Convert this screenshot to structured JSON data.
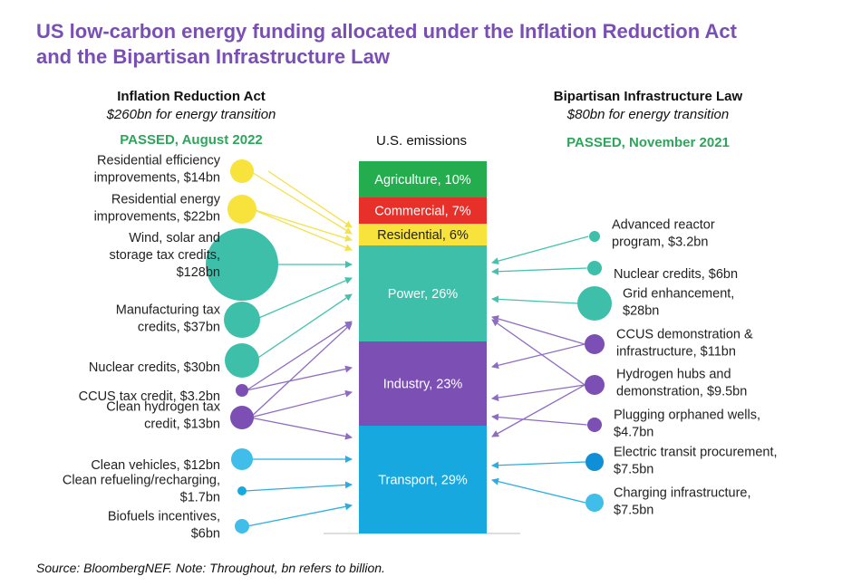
{
  "title_lines": [
    "US low-carbon energy funding allocated under the Inflation Reduction Act",
    "and the Bipartisan Infrastructure Law"
  ],
  "left_header": {
    "name": "Inflation Reduction Act",
    "amount": "$260bn for energy transition",
    "status": "PASSED, August 2022"
  },
  "right_header": {
    "name": "Bipartisan Infrastructure Law",
    "amount": "$80bn for energy transition",
    "status": "PASSED, November 2021"
  },
  "emissions_label": "U.S. emissions",
  "colors": {
    "agriculture": "#23ad4f",
    "commercial": "#e8302a",
    "residential": "#f7e33b",
    "power": "#3dbfaa",
    "industry": "#7b4fb3",
    "transport": "#17a8e0",
    "arrow_yellow": "#f3e24a",
    "arrow_teal": "#45c2ad",
    "arrow_purple": "#8e6cc4",
    "arrow_blue": "#2aaee2",
    "title": "#7a4fb5",
    "passed": "#2ca65a"
  },
  "segments": [
    {
      "id": "agriculture",
      "label": "Agriculture, 10%",
      "color": "#23ad4f",
      "text_color": "#ffffff"
    },
    {
      "id": "commercial",
      "label": "Commercial, 7%",
      "color": "#e8302a",
      "text_color": "#ffffff"
    },
    {
      "id": "residential",
      "label": "Residential, 6%",
      "color": "#f7e33b",
      "text_color": "#222222"
    },
    {
      "id": "power",
      "label": "Power, 26%",
      "color": "#3dbfaa",
      "text_color": "#ffffff"
    },
    {
      "id": "industry",
      "label": "Industry, 23%",
      "color": "#7b4fb3",
      "text_color": "#ffffff"
    },
    {
      "id": "transport",
      "label": "Transport, 29%",
      "color": "#17a8e0",
      "text_color": "#ffffff"
    }
  ],
  "left_items": [
    {
      "lines": [
        "Residential efficiency",
        "improvements, $14bn"
      ],
      "value_bn": 14,
      "color": "#f7e33b",
      "targets": [
        "residential"
      ]
    },
    {
      "lines": [
        "Residential energy",
        "improvements, $22bn"
      ],
      "value_bn": 22,
      "color": "#f7e33b",
      "targets": [
        "residential"
      ]
    },
    {
      "lines": [
        "Wind, solar and",
        "storage tax credits,",
        "$128bn"
      ],
      "value_bn": 128,
      "color": "#3dbfaa",
      "targets": [
        "power"
      ]
    },
    {
      "lines": [
        "Manufacturing tax",
        "credits, $37bn"
      ],
      "value_bn": 37,
      "color": "#3dbfaa",
      "targets": [
        "power"
      ]
    },
    {
      "lines": [
        "Nuclear credits, $30bn"
      ],
      "value_bn": 30,
      "color": "#3dbfaa",
      "targets": [
        "power"
      ]
    },
    {
      "lines": [
        "CCUS tax credit, $3.2bn"
      ],
      "value_bn": 3.2,
      "color": "#7b4fb3",
      "targets": [
        "power",
        "industry"
      ]
    },
    {
      "lines": [
        "Clean hydrogen tax",
        "credit, $13bn"
      ],
      "value_bn": 13,
      "color": "#7b4fb3",
      "targets": [
        "power",
        "industry",
        "transport"
      ]
    },
    {
      "lines": [
        "Clean vehicles, $12bn"
      ],
      "value_bn": 12,
      "color": "#40bde9",
      "targets": [
        "transport"
      ]
    },
    {
      "lines": [
        "Clean refueling/recharging,",
        "$1.7bn"
      ],
      "value_bn": 1.7,
      "color": "#17a8e0",
      "targets": [
        "transport"
      ]
    },
    {
      "lines": [
        "Biofuels incentives,",
        "$6bn"
      ],
      "value_bn": 6,
      "color": "#40bde9",
      "targets": [
        "transport"
      ]
    }
  ],
  "right_items": [
    {
      "lines": [
        "Advanced reactor",
        "program, $3.2bn"
      ],
      "value_bn": 3.2,
      "color": "#3dbfaa",
      "targets": [
        "power"
      ]
    },
    {
      "lines": [
        "Nuclear credits, $6bn"
      ],
      "value_bn": 6,
      "color": "#3dbfaa",
      "targets": [
        "power"
      ]
    },
    {
      "lines": [
        "Grid enhancement,",
        "$28bn"
      ],
      "value_bn": 28,
      "color": "#3dbfaa",
      "targets": [
        "power"
      ]
    },
    {
      "lines": [
        "CCUS demonstration &",
        "infrastructure, $11bn"
      ],
      "value_bn": 11,
      "color": "#7b4fb3",
      "targets": [
        "power",
        "industry"
      ]
    },
    {
      "lines": [
        "Hydrogen hubs and",
        "demonstration, $9.5bn"
      ],
      "value_bn": 9.5,
      "color": "#7b4fb3",
      "targets": [
        "power",
        "industry",
        "transport"
      ]
    },
    {
      "lines": [
        "Plugging orphaned wells,",
        "$4.7bn"
      ],
      "value_bn": 4.7,
      "color": "#7b4fb3",
      "targets": [
        "industry"
      ]
    },
    {
      "lines": [
        "Electric transit procurement,",
        "$7.5bn"
      ],
      "value_bn": 7.5,
      "color": "#0e8fd6",
      "targets": [
        "transport"
      ]
    },
    {
      "lines": [
        "Charging infrastructure,",
        "$7.5bn"
      ],
      "value_bn": 7.5,
      "color": "#40bde9",
      "targets": [
        "transport"
      ]
    }
  ],
  "source_note": "Source: BloombergNEF. Note: Throughout, bn refers to billion."
}
